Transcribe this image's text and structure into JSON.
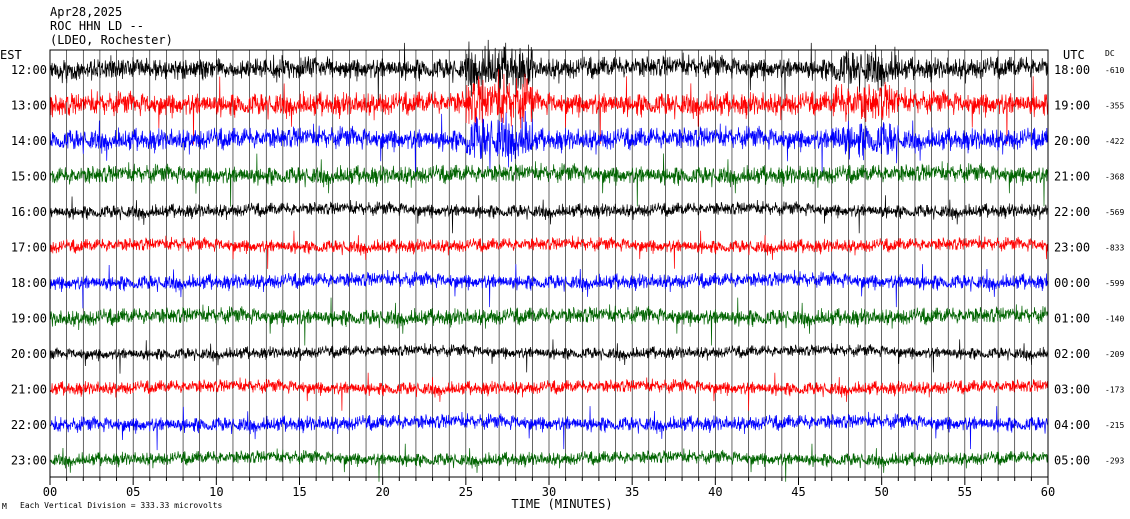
{
  "header": {
    "date": "Apr28,2025",
    "station": "ROC HHN LD --",
    "site": "(LDEO, Rochester)"
  },
  "chart_data": {
    "type": "line",
    "left_axis_title": "EST",
    "right_axis_title": "UTC",
    "dc_title": "DC",
    "xlabel": "TIME (MINUTES)",
    "xlim": [
      0,
      60
    ],
    "x_ticks": [
      "00",
      "05",
      "10",
      "15",
      "20",
      "25",
      "30",
      "35",
      "40",
      "45",
      "50",
      "55",
      "60"
    ],
    "x_tick_values": [
      0,
      5,
      10,
      15,
      20,
      25,
      30,
      35,
      40,
      45,
      50,
      55,
      60
    ],
    "footnote": "Each Vertical Division =  333.33 microvolts",
    "footnote_mark": "M",
    "grid": "vertical-per-minute",
    "trace_colors": [
      "#000000",
      "#ff0000",
      "#0000ff",
      "#006400"
    ],
    "rows": [
      {
        "est": "12:00",
        "utc": "18:00",
        "dc": "-610",
        "color": "#000000",
        "amplitude": 1.3
      },
      {
        "est": "13:00",
        "utc": "19:00",
        "dc": "-355",
        "color": "#ff0000",
        "amplitude": 1.4
      },
      {
        "est": "14:00",
        "utc": "20:00",
        "dc": "-422",
        "color": "#0000ff",
        "amplitude": 1.3
      },
      {
        "est": "15:00",
        "utc": "21:00",
        "dc": "-368",
        "color": "#006400",
        "amplitude": 1.1
      },
      {
        "est": "16:00",
        "utc": "22:00",
        "dc": "-569",
        "color": "#000000",
        "amplitude": 0.8
      },
      {
        "est": "17:00",
        "utc": "23:00",
        "dc": "-833",
        "color": "#ff0000",
        "amplitude": 0.8
      },
      {
        "est": "18:00",
        "utc": "00:00",
        "dc": "-599",
        "color": "#0000ff",
        "amplitude": 0.9
      },
      {
        "est": "19:00",
        "utc": "01:00",
        "dc": "-140",
        "color": "#006400",
        "amplitude": 1.0
      },
      {
        "est": "20:00",
        "utc": "02:00",
        "dc": "-209",
        "color": "#000000",
        "amplitude": 0.7
      },
      {
        "est": "21:00",
        "utc": "03:00",
        "dc": "-173",
        "color": "#ff0000",
        "amplitude": 0.8
      },
      {
        "est": "22:00",
        "utc": "04:00",
        "dc": "-215",
        "color": "#0000ff",
        "amplitude": 0.9
      },
      {
        "est": "23:00",
        "utc": "05:00",
        "dc": "-293",
        "color": "#006400",
        "amplitude": 0.8
      }
    ]
  }
}
